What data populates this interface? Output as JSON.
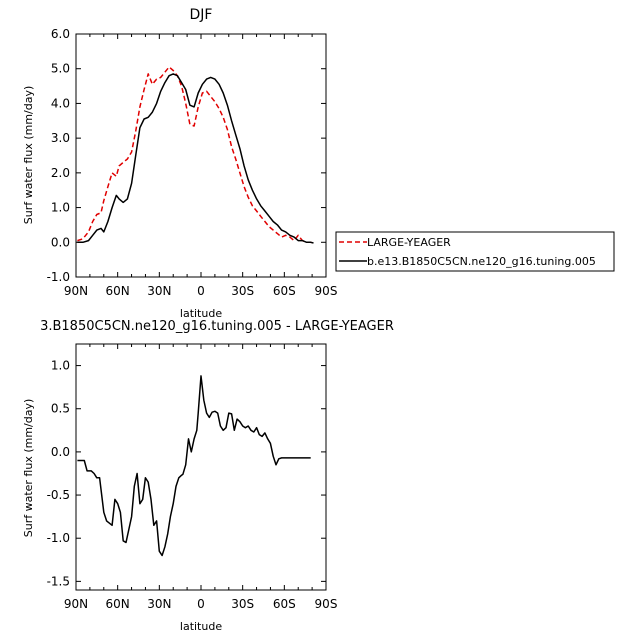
{
  "chart_data": [
    {
      "type": "line",
      "title": "DJF",
      "xlabel": "latitude",
      "ylabel": "Surf water flux (mm/day)",
      "xlim": [
        90,
        -90
      ],
      "ylim": [
        -1.0,
        6.0
      ],
      "x_ticks": [
        90,
        60,
        30,
        0,
        -30,
        -60,
        -90
      ],
      "x_tick_labels": [
        "90N",
        "60N",
        "30N",
        "0",
        "30S",
        "60S",
        "90S"
      ],
      "y_ticks": [
        -1.0,
        0.0,
        1.0,
        2.0,
        3.0,
        4.0,
        5.0,
        6.0
      ],
      "y_tick_labels": [
        "-1.0",
        "0.0",
        "1.0",
        "2.0",
        "3.0",
        "4.0",
        "5.0",
        "6.0"
      ],
      "grid": false,
      "legend_position": "right",
      "series": [
        {
          "name": "LARGE-YEAGER",
          "color": "#e00000",
          "dash": true,
          "x": [
            89,
            85,
            81,
            78,
            75,
            72,
            70,
            67,
            64,
            61,
            59,
            56,
            53,
            50,
            47,
            44,
            41,
            38,
            35,
            32,
            29,
            26,
            23,
            20,
            17,
            14,
            11,
            8,
            5,
            2,
            -1,
            -4,
            -7,
            -10,
            -13,
            -16,
            -19,
            -22,
            -25,
            -28,
            -31,
            -34,
            -37,
            -40,
            -43,
            -46,
            -49,
            -52,
            -55,
            -58,
            -61,
            -64,
            -67,
            -70,
            -73,
            -76,
            -79,
            -81
          ],
          "y": [
            0.05,
            0.1,
            0.3,
            0.6,
            0.8,
            0.85,
            1.2,
            1.6,
            2.0,
            1.9,
            2.2,
            2.3,
            2.4,
            2.6,
            3.2,
            3.9,
            4.4,
            4.85,
            4.55,
            4.7,
            4.75,
            4.9,
            5.05,
            4.95,
            4.8,
            4.5,
            4.0,
            3.4,
            3.35,
            3.9,
            4.3,
            4.35,
            4.2,
            4.05,
            3.85,
            3.6,
            3.25,
            2.75,
            2.4,
            2.0,
            1.6,
            1.3,
            1.05,
            0.9,
            0.75,
            0.6,
            0.45,
            0.35,
            0.25,
            0.15,
            0.2,
            0.15,
            0.05,
            0.2,
            0.05,
            0.0,
            0.0,
            -0.02
          ]
        },
        {
          "name": "b.e13.B1850C5CN.ne120_g16.tuning.005",
          "color": "#000000",
          "dash": false,
          "x": [
            89,
            85,
            81,
            78,
            75,
            72,
            70,
            67,
            64,
            61,
            59,
            56,
            53,
            50,
            47,
            44,
            41,
            38,
            35,
            32,
            29,
            26,
            23,
            20,
            17,
            14,
            11,
            8,
            5,
            2,
            -1,
            -4,
            -7,
            -10,
            -13,
            -16,
            -19,
            -22,
            -25,
            -28,
            -31,
            -34,
            -37,
            -40,
            -43,
            -46,
            -49,
            -52,
            -55,
            -58,
            -61,
            -64,
            -67,
            -70,
            -73,
            -76,
            -79,
            -81
          ],
          "y": [
            0.0,
            0.0,
            0.05,
            0.2,
            0.35,
            0.4,
            0.3,
            0.6,
            1.0,
            1.35,
            1.25,
            1.15,
            1.25,
            1.7,
            2.5,
            3.3,
            3.55,
            3.6,
            3.75,
            4.0,
            4.35,
            4.6,
            4.8,
            4.85,
            4.8,
            4.6,
            4.4,
            3.95,
            3.9,
            4.3,
            4.55,
            4.7,
            4.75,
            4.7,
            4.55,
            4.3,
            3.95,
            3.5,
            3.1,
            2.7,
            2.2,
            1.8,
            1.5,
            1.25,
            1.05,
            0.9,
            0.75,
            0.6,
            0.5,
            0.35,
            0.3,
            0.2,
            0.15,
            0.05,
            0.05,
            0.0,
            0.0,
            -0.02
          ]
        }
      ]
    },
    {
      "type": "line",
      "title": "3.B1850C5CN.ne120_g16.tuning.005 - LARGE-YEAGER",
      "xlabel": "latitude",
      "ylabel": "Surf water flux (mm/day)",
      "xlim": [
        90,
        -90
      ],
      "ylim": [
        -1.6,
        1.25
      ],
      "x_ticks": [
        90,
        60,
        30,
        0,
        -30,
        -60,
        -90
      ],
      "x_tick_labels": [
        "90N",
        "60N",
        "30N",
        "0",
        "30S",
        "60S",
        "90S"
      ],
      "y_ticks": [
        -1.5,
        -1.0,
        -0.5,
        0.0,
        0.5,
        1.0
      ],
      "y_tick_labels": [
        "-1.5",
        "-1.0",
        "-0.5",
        "0.0",
        "0.5",
        "1.0"
      ],
      "grid": false,
      "series": [
        {
          "name": "",
          "color": "#000000",
          "dash": false,
          "x": [
            89,
            84,
            82,
            79,
            77,
            75,
            73,
            70,
            68,
            64,
            62,
            60,
            58,
            56,
            54,
            52,
            50,
            48,
            46,
            44,
            42,
            40,
            38,
            36,
            34,
            32,
            30,
            28,
            26,
            24,
            22,
            20,
            18,
            16,
            14,
            13,
            11,
            9,
            7,
            5,
            3,
            2,
            0,
            -2,
            -4,
            -6,
            -8,
            -10,
            -12,
            -14,
            -16,
            -18,
            -20,
            -22,
            -24,
            -26,
            -28,
            -30,
            -32,
            -34,
            -36,
            -38,
            -40,
            -42,
            -44,
            -46,
            -48,
            -50,
            -52,
            -54,
            -56,
            -58,
            -60,
            -62,
            -64,
            -66,
            -68,
            -70,
            -72,
            -74,
            -76,
            -78,
            -79
          ],
          "y": [
            -0.1,
            -0.1,
            -0.22,
            -0.22,
            -0.25,
            -0.3,
            -0.3,
            -0.7,
            -0.8,
            -0.85,
            -0.55,
            -0.6,
            -0.7,
            -1.03,
            -1.05,
            -0.9,
            -0.75,
            -0.4,
            -0.25,
            -0.6,
            -0.55,
            -0.3,
            -0.35,
            -0.55,
            -0.85,
            -0.8,
            -1.15,
            -1.2,
            -1.1,
            -0.95,
            -0.75,
            -0.6,
            -0.4,
            -0.3,
            -0.27,
            -0.26,
            -0.15,
            0.15,
            0.0,
            0.15,
            0.25,
            0.45,
            0.88,
            0.6,
            0.45,
            0.4,
            0.46,
            0.47,
            0.45,
            0.3,
            0.25,
            0.28,
            0.45,
            0.44,
            0.25,
            0.38,
            0.35,
            0.3,
            0.28,
            0.3,
            0.25,
            0.23,
            0.28,
            0.2,
            0.18,
            0.22,
            0.15,
            0.1,
            -0.05,
            -0.15,
            -0.08,
            -0.07,
            -0.07,
            -0.07,
            -0.07,
            -0.07,
            -0.07,
            -0.07,
            -0.07,
            -0.07,
            -0.07,
            -0.07,
            -0.07
          ]
        }
      ]
    }
  ]
}
